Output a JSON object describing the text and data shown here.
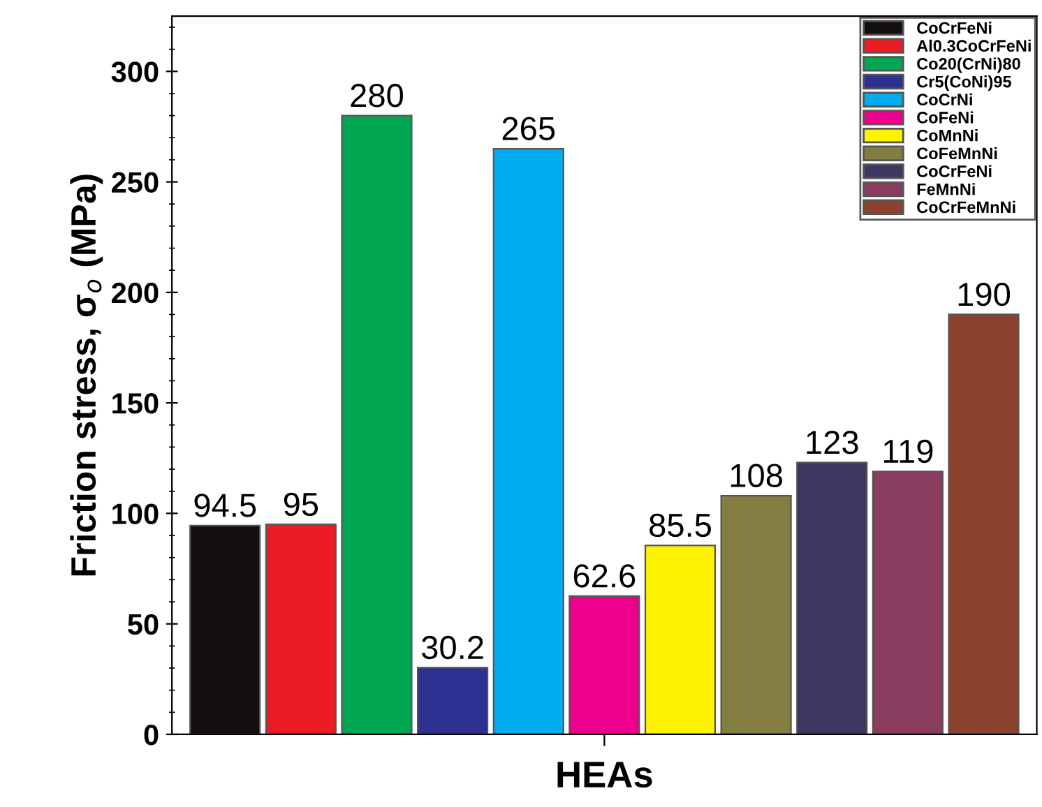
{
  "chart_data": {
    "type": "bar",
    "xlabel": "HEAs",
    "ylabel": "Friction stress, σ$_{o}$ (MPa)",
    "categories": [
      null,
      null,
      null,
      null,
      null,
      null,
      null,
      null,
      null,
      null,
      null
    ],
    "series": [
      {
        "name": "CoCrFeNi",
        "color": "#130f0e",
        "values": [
          94.5,
          null,
          null,
          null,
          null,
          null,
          null,
          null,
          null,
          null,
          null
        ]
      },
      {
        "name": "Al0.3CoCrFeNi",
        "color": "#ec1c24",
        "values": [
          null,
          95,
          null,
          null,
          null,
          null,
          null,
          null,
          null,
          null,
          null
        ]
      },
      {
        "name": "Co20(CrNi)80",
        "color": "#00a651",
        "values": [
          null,
          null,
          280,
          null,
          null,
          null,
          null,
          null,
          null,
          null,
          null
        ]
      },
      {
        "name": "Cr5(CoNi)95",
        "color": "#2e3192",
        "values": [
          null,
          null,
          null,
          30.2,
          null,
          null,
          null,
          null,
          null,
          null,
          null
        ]
      },
      {
        "name": "CoCrNi",
        "color": "#00aeef",
        "values": [
          null,
          null,
          null,
          null,
          265,
          null,
          null,
          null,
          null,
          null,
          null
        ]
      },
      {
        "name": "CoFeNi",
        "color": "#ec008c",
        "values": [
          null,
          null,
          null,
          null,
          null,
          62.6,
          null,
          null,
          null,
          null,
          null
        ]
      },
      {
        "name": "CoMnNi",
        "color": "#fff200",
        "values": [
          null,
          null,
          null,
          null,
          null,
          null,
          85.5,
          null,
          null,
          null,
          null
        ]
      },
      {
        "name": "CoFeMnNi",
        "color": "#847d42",
        "values": [
          null,
          null,
          null,
          null,
          null,
          null,
          null,
          108,
          null,
          null,
          null
        ]
      },
      {
        "name": "CoCrFeNi",
        "color": "#3c3660",
        "values": [
          null,
          null,
          null,
          null,
          null,
          null,
          null,
          null,
          123,
          null,
          null
        ]
      },
      {
        "name": "FeMnNi",
        "color": "#8a3d5f",
        "values": [
          null,
          null,
          null,
          null,
          null,
          null,
          null,
          null,
          null,
          119,
          null
        ]
      },
      {
        "name": "CoCrFeMnNi",
        "color": "#8b4330",
        "values": [
          null,
          null,
          null,
          null,
          null,
          null,
          null,
          null,
          null,
          null,
          190
        ]
      }
    ],
    "ylim": [
      0,
      325
    ],
    "yticks": [
      0,
      50,
      100,
      150,
      200,
      250,
      300
    ],
    "data_labels": true,
    "legend": "top right",
    "grid": false
  }
}
